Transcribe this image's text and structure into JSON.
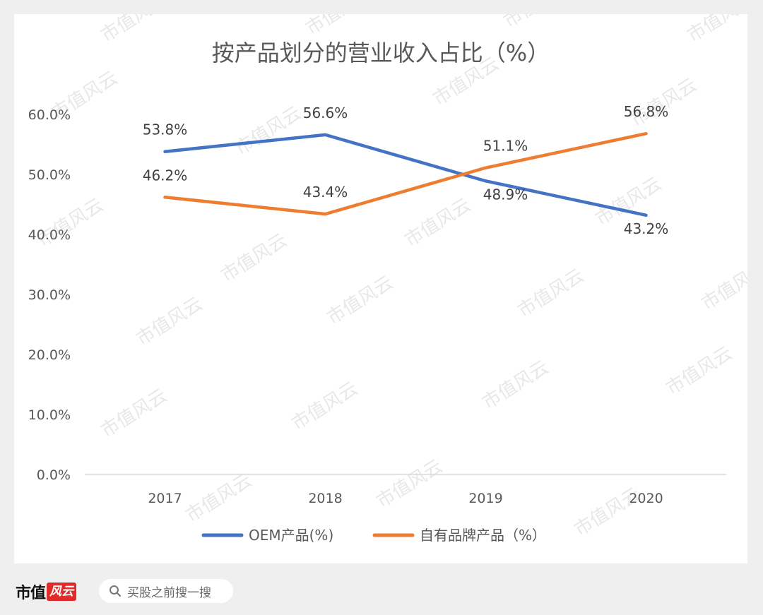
{
  "chart_data": {
    "type": "line",
    "title": "按产品划分的营业收入占比（%）",
    "categories": [
      "2017",
      "2018",
      "2019",
      "2020"
    ],
    "series": [
      {
        "name": "OEM产品(%)",
        "color": "#4472c4",
        "values": [
          53.8,
          56.6,
          48.9,
          43.2
        ],
        "labels": [
          "53.8%",
          "56.6%",
          "48.9%",
          "43.2%"
        ]
      },
      {
        "name": "自有品牌产品（%）",
        "color": "#ed7d31",
        "values": [
          46.2,
          43.4,
          51.1,
          56.8
        ],
        "labels": [
          "46.2%",
          "43.4%",
          "51.1%",
          "56.8%"
        ]
      }
    ],
    "ylim": [
      0,
      60
    ],
    "yticks": [
      "0.0%",
      "10.0%",
      "20.0%",
      "30.0%",
      "40.0%",
      "50.0%",
      "60.0%"
    ],
    "xlabel": "",
    "ylabel": "",
    "legend": "bottom",
    "grid": false
  },
  "watermark": "市值风云",
  "footer": {
    "brand": "市值",
    "brand_mark": "风云",
    "search_icon": "search-icon",
    "search_text": "买股之前搜一搜"
  }
}
